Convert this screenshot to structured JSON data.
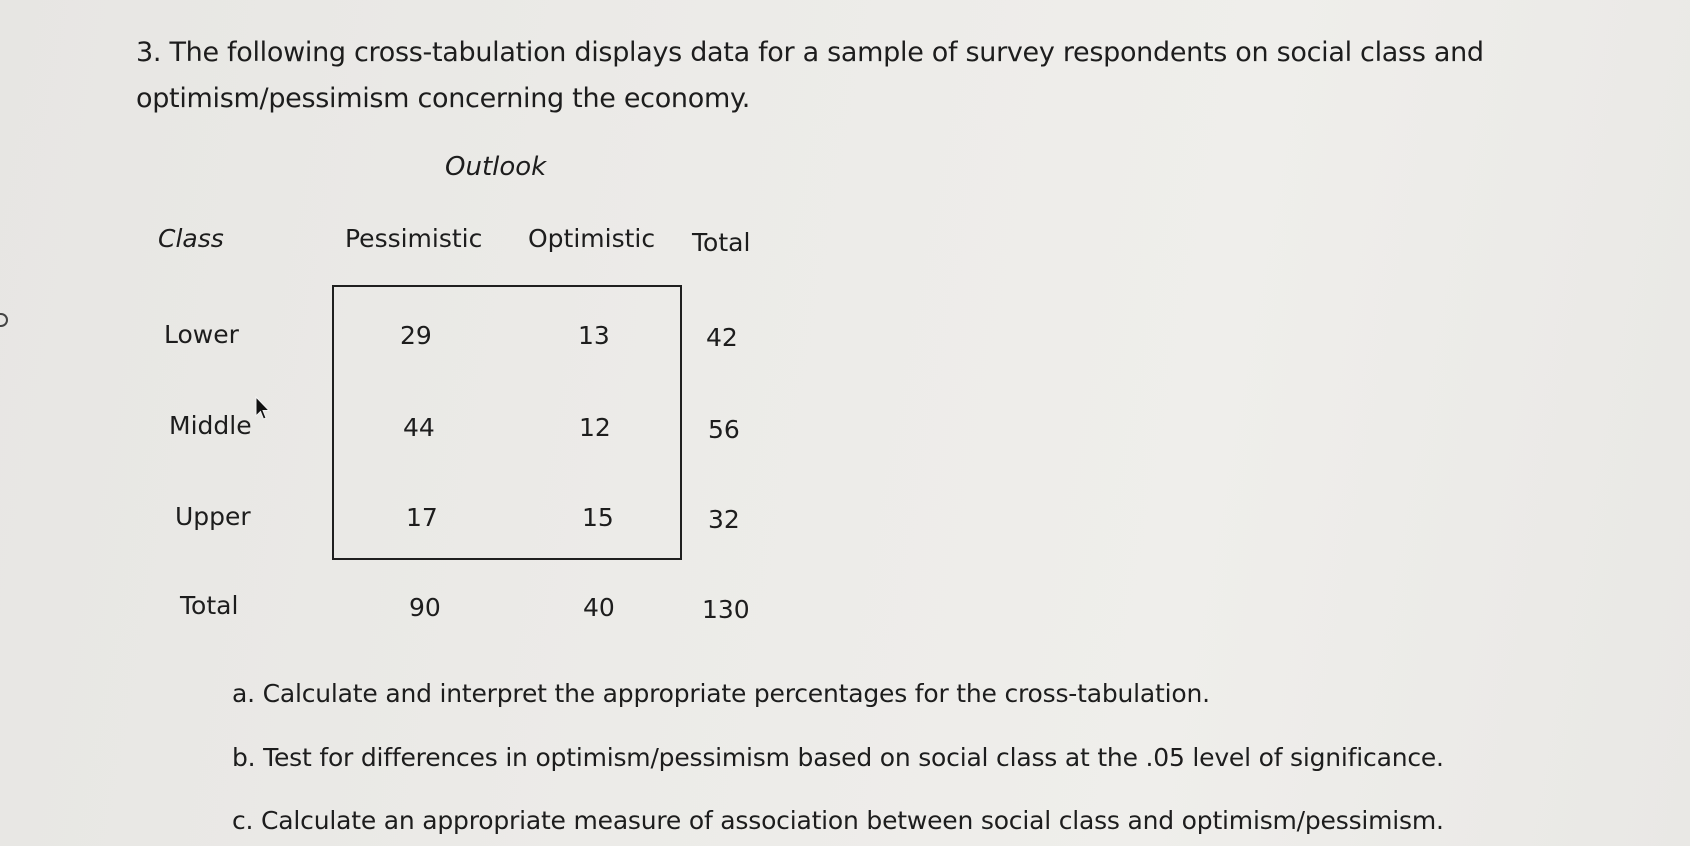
{
  "question": {
    "text": "3. The following cross-tabulation displays data for a sample of survey respondents on social class and optimism/pessimism concerning the economy."
  },
  "table": {
    "column_group_label": "Outlook",
    "row_header": "Class",
    "columns": [
      "Pessimistic",
      "Optimistic",
      "Total"
    ],
    "rows": [
      {
        "label": "Lower",
        "values": [
          "29",
          "13",
          "42"
        ]
      },
      {
        "label": "Middle",
        "values": [
          "44",
          "12",
          "56"
        ]
      },
      {
        "label": "Upper",
        "values": [
          "17",
          "15",
          "32"
        ]
      },
      {
        "label": "Total",
        "values": [
          "90",
          "40",
          "130"
        ]
      }
    ]
  },
  "parts": [
    {
      "text": "a. Calculate and interpret the appropriate percentages for the cross-tabulation."
    },
    {
      "text": "b. Test for differences in optimism/pessimism based on social class at the .05 level of significance."
    },
    {
      "text": "c. Calculate an appropriate measure of association between social class and optimism/pessimism."
    }
  ],
  "icons": {
    "cursor": "mouse-pointer-icon"
  }
}
